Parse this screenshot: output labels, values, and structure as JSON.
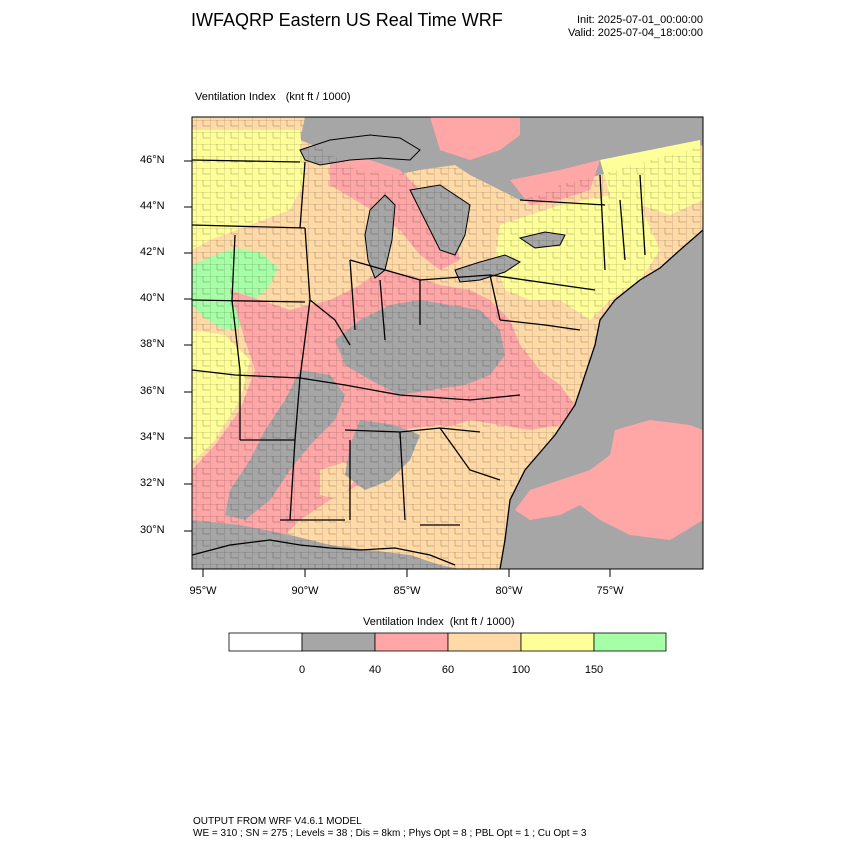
{
  "header": {
    "title": "IWFAQRP Eastern US Real Time WRF",
    "init": "Init: 2025-07-01_00:00:00",
    "valid": "Valid: 2025-07-04_18:00:00"
  },
  "field": {
    "name": "Ventilation Index",
    "units": "(knt ft / 1000)"
  },
  "map": {
    "lat_labels": [
      "46°N",
      "44°N",
      "42°N",
      "40°N",
      "38°N",
      "36°N",
      "34°N",
      "32°N",
      "30°N"
    ],
    "lon_labels": [
      "95°W",
      "90°W",
      "85°W",
      "80°W",
      "75°W"
    ],
    "colors": {
      "ocean": "#a6a6a6",
      "low": "#a6a6a6",
      "v40_60": "#ffa6a6",
      "v60_100": "#ffd9a6",
      "v100_150": "#ffff99",
      "v150_plus": "#a6ffa6"
    }
  },
  "colorbar": {
    "title": "Ventilation Index",
    "units": "(knt ft / 1000)",
    "ticks": [
      "0",
      "40",
      "60",
      "100",
      "150"
    ],
    "colors": [
      "#ffffff",
      "#a6a6a6",
      "#ffa6a6",
      "#ffd9a6",
      "#ffff99",
      "#a6ffa6"
    ]
  },
  "footer": {
    "line1": "OUTPUT FROM WRF V4.6.1 MODEL",
    "line2": "WE = 310 ; SN = 275 ; Levels = 38 ; Dis = 8km ; Phys Opt = 8 ; PBL Opt = 1 ; Cu Opt = 3"
  }
}
